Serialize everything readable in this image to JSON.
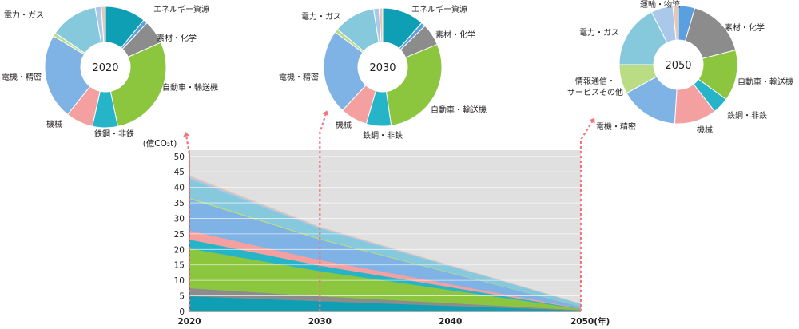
{
  "chart_data": [
    {
      "type": "area",
      "stacked": true,
      "x": [
        2020,
        2030,
        2050
      ],
      "x_tick_labels": [
        "2020",
        "2030",
        "2040",
        "2050(年)"
      ],
      "ylabel": "(億CO₂t)",
      "ylim": [
        0,
        52
      ],
      "y_ticks": [
        0,
        5,
        10,
        15,
        20,
        25,
        30,
        35,
        40,
        45,
        50
      ],
      "grid": true,
      "series": [
        {
          "color": "#0e9fb4",
          "values": [
            4.9,
            3.3,
            0.3
          ]
        },
        {
          "color": "#8c8c8c",
          "values": [
            2.6,
            1.6,
            0.15
          ]
        },
        {
          "color": "#8cc63f",
          "values": [
            12.8,
            8.1,
            0.3
          ]
        },
        {
          "color": "#26b5c8",
          "values": [
            2.9,
            1.8,
            0.1
          ]
        },
        {
          "color": "#f4a0a0",
          "values": [
            2.9,
            1.8,
            0.1
          ]
        },
        {
          "color": "#7fb2e5",
          "values": [
            10.2,
            6.6,
            0.6
          ]
        },
        {
          "color": "#b9dc85",
          "values": [
            0.4,
            0.3,
            0.05
          ]
        },
        {
          "color": "#86c9dc",
          "values": [
            6.0,
            3.2,
            0.8
          ]
        },
        {
          "color": "#a9c8ea",
          "values": [
            0.7,
            0.4,
            0.05
          ]
        },
        {
          "color": "#e6c8b4",
          "values": [
            0.4,
            0.2,
            0.02
          ]
        }
      ]
    },
    {
      "type": "pie",
      "center_label": "2020",
      "slices": [
        {
          "label": "エネルギー資源",
          "value": 10.8,
          "color": "#0e9fb4"
        },
        {
          "label": "",
          "value": 1.1,
          "color": "#5aa0e0"
        },
        {
          "label": "素材・化学",
          "value": 6.3,
          "color": "#8c8c8c"
        },
        {
          "label": "自動車・輸送機",
          "value": 28.2,
          "color": "#8cc63f"
        },
        {
          "label": "鉄鋼・非鉄",
          "value": 6.7,
          "color": "#26b5c8"
        },
        {
          "label": "機械",
          "value": 7.2,
          "color": "#f4a0a0"
        },
        {
          "label": "電機・精密",
          "value": 22.7,
          "color": "#7fb2e5"
        },
        {
          "label": "",
          "value": 0.9,
          "color": "#b9dc85"
        },
        {
          "label": "電力・ガス",
          "value": 12.7,
          "color": "#86c9dc"
        },
        {
          "label": "",
          "value": 1.6,
          "color": "#a9c8ea"
        },
        {
          "label": "",
          "value": 1.1,
          "color": "#e6c8b4"
        }
      ]
    },
    {
      "type": "pie",
      "center_label": "2030",
      "slices": [
        {
          "label": "エネルギー資源",
          "value": 11.5,
          "color": "#0e9fb4"
        },
        {
          "label": "",
          "value": 1.2,
          "color": "#5aa0e0"
        },
        {
          "label": "素材・化学",
          "value": 6.0,
          "color": "#8c8c8c"
        },
        {
          "label": "自動車・輸送機",
          "value": 29.0,
          "color": "#8cc63f"
        },
        {
          "label": "鉄鋼・非鉄",
          "value": 6.8,
          "color": "#26b5c8"
        },
        {
          "label": "機械",
          "value": 7.4,
          "color": "#f4a0a0"
        },
        {
          "label": "電機・精密",
          "value": 23.2,
          "color": "#7fb2e5"
        },
        {
          "label": "",
          "value": 1.0,
          "color": "#b9dc85"
        },
        {
          "label": "電力・ガス",
          "value": 11.4,
          "color": "#86c9dc"
        },
        {
          "label": "",
          "value": 1.5,
          "color": "#a9c8ea"
        },
        {
          "label": "",
          "value": 1.0,
          "color": "#e6c8b4"
        }
      ]
    },
    {
      "type": "pie",
      "center_label": "2050",
      "slices": [
        {
          "label": "",
          "value": 4.5,
          "color": "#5aa0e0"
        },
        {
          "label": "素材・化学",
          "value": 16.5,
          "color": "#8c8c8c"
        },
        {
          "label": "自動車・輸送機",
          "value": 14.0,
          "color": "#8cc63f"
        },
        {
          "label": "鉄鋼・非鉄",
          "value": 4.5,
          "color": "#26b5c8"
        },
        {
          "label": "機械",
          "value": 11.5,
          "color": "#f4a0a0"
        },
        {
          "label": "電機・精密",
          "value": 16.0,
          "color": "#7fb2e5"
        },
        {
          "label": "情報通信・\nサービスその他",
          "value": 8.0,
          "color": "#b9dc85"
        },
        {
          "label": "電力・ガス",
          "value": 17.5,
          "color": "#86c9dc"
        },
        {
          "label": "運輸・物流",
          "value": 6.0,
          "color": "#a9c8ea"
        },
        {
          "label": "",
          "value": 1.5,
          "color": "#e6c8b4"
        }
      ]
    }
  ]
}
